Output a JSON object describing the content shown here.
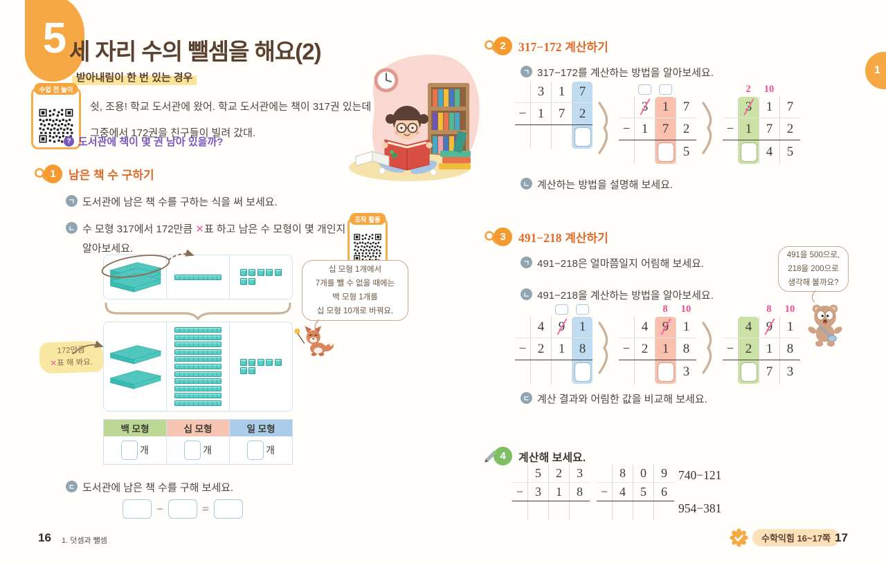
{
  "colors": {
    "accent_orange": "#f6a844",
    "section_orange": "#e06b2a",
    "title_brown": "#59402f",
    "purple": "#7a56c0",
    "pink_mark": "#ee4b97",
    "hl_blue": "#bfdcf0",
    "hl_pink": "#f8c0ad",
    "hl_green": "#cbe1a6",
    "teal_block": "#58d0c8"
  },
  "left": {
    "lesson_no": "5",
    "title": "세 자리 수의 뺄셈을 해요(2)",
    "subtitle": "받아내림이 한 번 있는 경우",
    "qr1_label": "수업 전 놀이",
    "intro1": "쉿, 조용! 학교 도서관에 왔어. 학교 도서관에는 책이 317권 있는데",
    "intro2": "그중에서 172권을 친구들이 빌려 갔대.",
    "question_mark": "?",
    "question": "도서관에 책이 몇 권 남아 있을까?",
    "s1": {
      "no": "1",
      "title": "남은 책 수 구하기",
      "item1_bullet": "ㄱ",
      "item1": "도서관에 남은 책 수를 구하는 식을 써 보세요.",
      "item2_bullet": "ㄴ",
      "item2_a": "수 모형 317에서 172만큼 ",
      "item2_x": "✕",
      "item2_b": "표 하고 남은 수 모형이 몇 개인지",
      "item2_line2": "알아보세요.",
      "item3_bullet": "ㄷ",
      "item3": "도서관에 남은 책 수를 구해 보세요.",
      "qr2_label": "조작 활동",
      "bubble": [
        "십 모형 1개에서",
        "7개를 뺄 수 없을 때에는",
        "백 모형 1개를",
        "십 모형 10개로 바꿔요."
      ],
      "sticky_line1": "172만큼",
      "sticky_x": "✕",
      "sticky_line2": "표 해 봐요.",
      "table_headers": [
        "백 모형",
        "십 모형",
        "일 모형"
      ],
      "unit": "개",
      "minus": "−",
      "equals": "="
    },
    "footer_page": "16",
    "footer_chapter": "1. 덧셈과 뺄셈"
  },
  "right": {
    "edge_tab": "1",
    "s2": {
      "no": "2",
      "title_num": "317−172",
      "title_rest": " 계산하기",
      "item1_bullet": "ㄱ",
      "item1": "317−172를 계산하는 방법을 알아보세요.",
      "item2_bullet": "ㄴ",
      "item2": "계산하는 방법을 설명해 보세요."
    },
    "s3": {
      "no": "3",
      "title_num": "491−218",
      "title_rest": " 계산하기",
      "item1_bullet": "ㄱ",
      "item1": "491−218은 얼마쯤일지 어림해 보세요.",
      "item2_bullet": "ㄴ",
      "item2": "491−218을 계산하는 방법을 알아보세요.",
      "item3_bullet": "ㄷ",
      "item3": "계산 결과와 어림한 값을 비교해 보세요.",
      "bubble": [
        "491을 500으로,",
        "218을 200으로",
        "생각해 볼까요?"
      ]
    },
    "s4": {
      "no": "4",
      "title": "계산해 보세요.",
      "problems": [
        "740−121",
        "954−381"
      ]
    },
    "footer_badge": "수학익힘 16~17쪽",
    "footer_page": "17"
  },
  "models": {
    "d1": {
      "hundreds": 3,
      "tens": 1,
      "ones": 7,
      "tens_vertical": false,
      "stack": "tight"
    },
    "d2": {
      "hundreds": 2,
      "tens": 11,
      "ones": 7,
      "tens_vertical": true,
      "stack": "gap"
    }
  },
  "grids": {
    "s2a": {
      "top": null,
      "minuend": [
        "3",
        "1",
        "7"
      ],
      "slash": -1,
      "sub": [
        "1",
        "7",
        "2"
      ],
      "answer": [
        "",
        "",
        "box"
      ],
      "hl": {
        "col": 2,
        "color": "blue"
      }
    },
    "s2b": {
      "top": [
        "box",
        "box",
        ""
      ],
      "minuend": [
        "3",
        "1",
        "7"
      ],
      "slash": 0,
      "sub": [
        "1",
        "7",
        "2"
      ],
      "answer": [
        "",
        "box",
        "5"
      ],
      "hl": {
        "col": 1,
        "color": "pink"
      }
    },
    "s2c": {
      "top": [
        "2",
        "10",
        ""
      ],
      "minuend": [
        "3",
        "1",
        "7"
      ],
      "slash": 0,
      "sub": [
        "1",
        "7",
        "2"
      ],
      "answer": [
        "box",
        "4",
        "5"
      ],
      "hl": {
        "col": 0,
        "color": "green"
      }
    },
    "s3a": {
      "top": [
        "",
        "box",
        "box"
      ],
      "minuend": [
        "4",
        "9",
        "1"
      ],
      "slash": 1,
      "sub": [
        "2",
        "1",
        "8"
      ],
      "answer": [
        "",
        "",
        "box"
      ],
      "hl": {
        "col": 2,
        "color": "blue"
      }
    },
    "s3b": {
      "top": [
        "",
        "8",
        "10"
      ],
      "minuend": [
        "4",
        "9",
        "1"
      ],
      "slash": 1,
      "sub": [
        "2",
        "1",
        "8"
      ],
      "answer": [
        "",
        "box",
        "3"
      ],
      "hl": {
        "col": 1,
        "color": "pink"
      }
    },
    "s3c": {
      "top": [
        "",
        "8",
        "10"
      ],
      "minuend": [
        "4",
        "9",
        "1"
      ],
      "slash": 1,
      "sub": [
        "2",
        "1",
        "8"
      ],
      "answer": [
        "box",
        "7",
        "3"
      ],
      "hl": {
        "col": 0,
        "color": "green"
      }
    },
    "s4a": {
      "top": null,
      "minuend": [
        "5",
        "2",
        "3"
      ],
      "slash": -1,
      "sub": [
        "3",
        "1",
        "8"
      ],
      "answer": [
        "",
        "",
        ""
      ],
      "hl": null
    },
    "s4b": {
      "top": null,
      "minuend": [
        "8",
        "0",
        "9"
      ],
      "slash": -1,
      "sub": [
        "4",
        "5",
        "6"
      ],
      "answer": [
        "",
        "",
        ""
      ],
      "hl": null
    }
  }
}
